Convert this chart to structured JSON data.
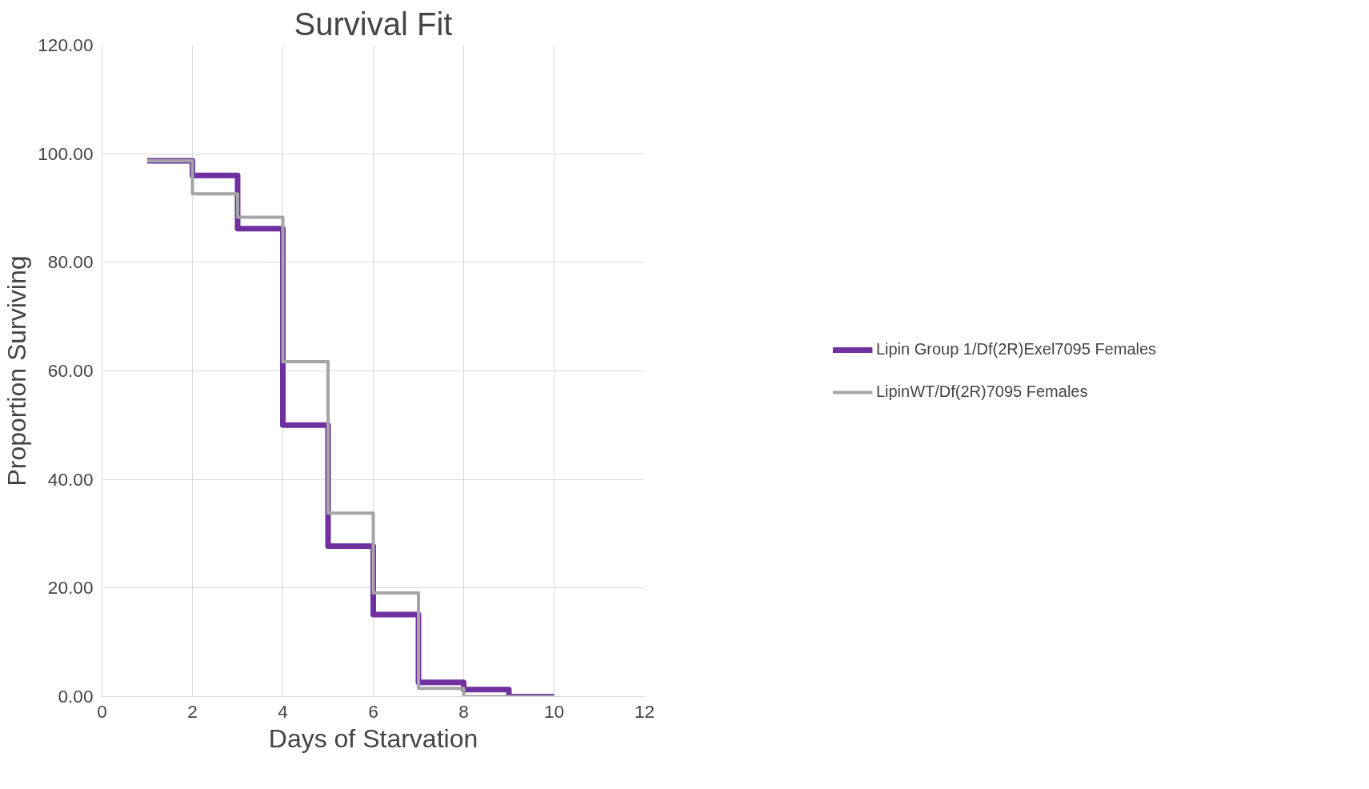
{
  "chart_data": {
    "type": "step",
    "title": "Survival Fit",
    "xlabel": "Days of Starvation",
    "ylabel": "Proportion Surviving",
    "xlim": [
      0,
      12
    ],
    "xticks": [
      0,
      2,
      4,
      6,
      8,
      10,
      12
    ],
    "ylim": [
      0,
      120
    ],
    "yticks": [
      {
        "value": 0,
        "label": "0.00"
      },
      {
        "value": 20,
        "label": "20.00"
      },
      {
        "value": 40,
        "label": "40.00"
      },
      {
        "value": 60,
        "label": "60.00"
      },
      {
        "value": 80,
        "label": "80.00"
      },
      {
        "value": 100,
        "label": "100.00"
      },
      {
        "value": 120,
        "label": "120.00"
      }
    ],
    "grid": true,
    "legend": "right",
    "line_style": "solid",
    "x": [
      1,
      2,
      3,
      4,
      5,
      6,
      7,
      8,
      9,
      10
    ],
    "series": [
      {
        "name": "Lipin Group 1/Df(2R)Exel7095 Females",
        "color": "#7030a0",
        "values": [
          98.7,
          96.0,
          86.2,
          50.0,
          27.7,
          15.1,
          2.6,
          1.3,
          0,
          0
        ]
      },
      {
        "name": "LipinWT/Df(2R)7095 Females",
        "color": "#a5a5a5",
        "values": [
          98.7,
          92.6,
          88.3,
          61.7,
          33.8,
          19.1,
          1.5,
          0,
          0,
          0
        ]
      }
    ]
  }
}
